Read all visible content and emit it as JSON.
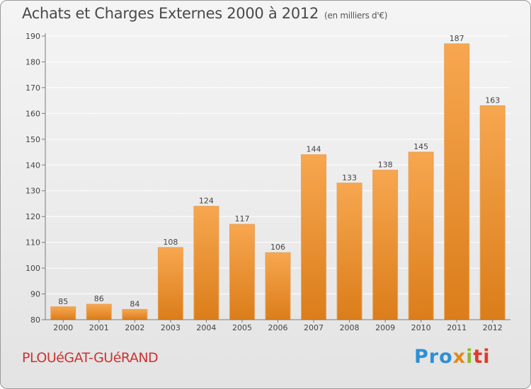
{
  "header": {
    "title": "Achats et Charges Externes 2000 à 2012",
    "subtitle": "(en milliers d'€)"
  },
  "footer": {
    "town": "PLOUéGAT-GUéRAND",
    "logo_parts": [
      "Pro",
      "x",
      "i",
      "ti"
    ]
  },
  "colors": {
    "bar_top": "#f7a750",
    "bar_bottom": "#db7d1a",
    "bar_edge": "#e8a25a",
    "grid": "#ffffff",
    "axis": "#7a7a7a",
    "town": "#cc3333"
  },
  "chart_data": {
    "type": "bar",
    "title": "Achats et Charges Externes 2000 à 2012",
    "subtitle": "(en milliers d'€)",
    "categories": [
      "2000",
      "2001",
      "2002",
      "2003",
      "2004",
      "2005",
      "2006",
      "2007",
      "2008",
      "2009",
      "2010",
      "2011",
      "2012"
    ],
    "values": [
      85,
      86,
      84,
      108,
      124,
      117,
      106,
      144,
      133,
      138,
      145,
      187,
      163
    ],
    "ylim": [
      80,
      190
    ],
    "yticks": [
      80,
      90,
      100,
      110,
      120,
      130,
      140,
      150,
      160,
      170,
      180,
      190
    ],
    "grid": true,
    "xlabel": "",
    "ylabel": ""
  }
}
